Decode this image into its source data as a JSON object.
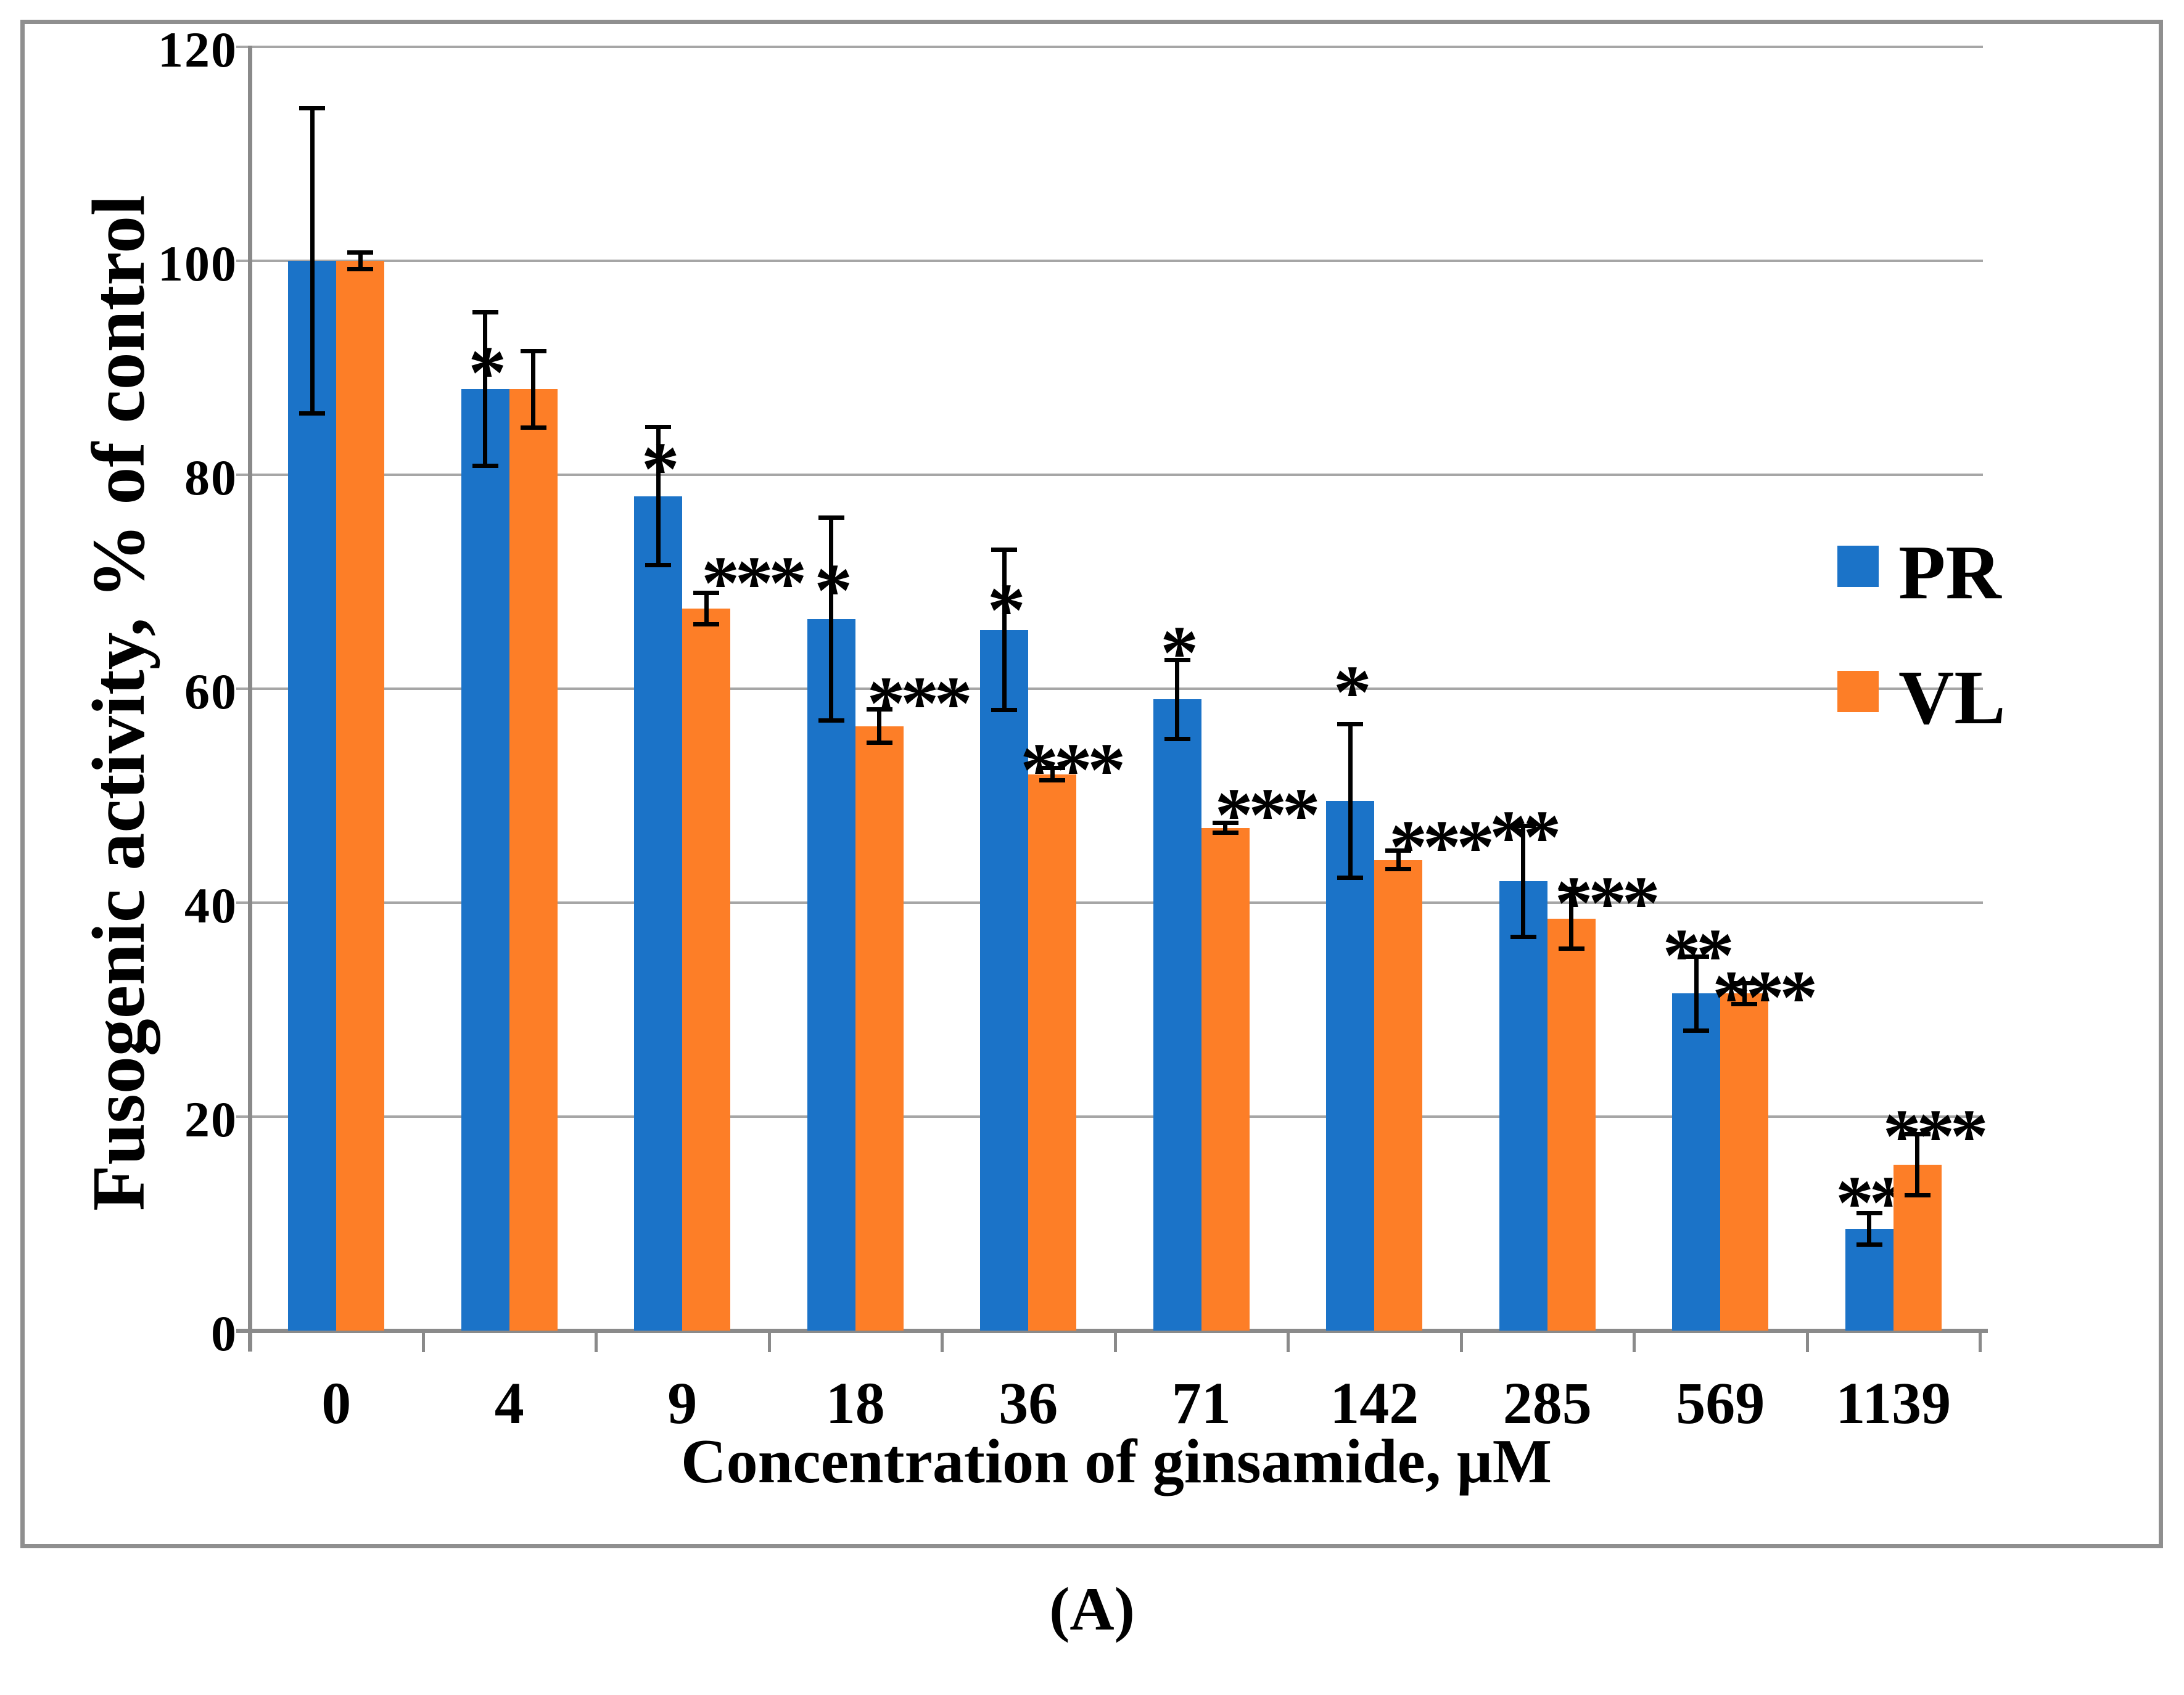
{
  "figure": {
    "caption": "(A)"
  },
  "chart_data": {
    "type": "bar",
    "title": "",
    "xlabel": "Concentration of ginsamide, μM",
    "ylabel": "Fusogenic activity, % of control",
    "categories": [
      "0",
      "4",
      "9",
      "18",
      "36",
      "71",
      "142",
      "285",
      "569",
      "1139"
    ],
    "y_ticks": [
      0,
      20,
      40,
      60,
      80,
      100,
      120
    ],
    "ylim": [
      0,
      120
    ],
    "grid": true,
    "legend_position": "right-inside",
    "gridline_color": "#a6a6a6",
    "error_bar_color": "#000000",
    "series": [
      {
        "name": "PR",
        "color": "#1b73c8",
        "values": [
          100,
          88,
          78,
          66.5,
          65.5,
          59,
          49.5,
          42,
          31.5,
          9.5
        ],
        "errors": [
          14.3,
          7.2,
          6.5,
          9.5,
          7.5,
          3.7,
          7.2,
          5.2,
          3.5,
          1.5
        ],
        "significance": [
          "",
          "*",
          "*",
          "*",
          "*",
          "*",
          "*",
          "**",
          "**",
          "**"
        ]
      },
      {
        "name": "VL",
        "color": "#fd7e27",
        "values": [
          100,
          88,
          67.5,
          56.5,
          52,
          47,
          44,
          38.5,
          31.5,
          15.5
        ],
        "errors": [
          0.8,
          3.6,
          1.5,
          1.6,
          0.6,
          0.5,
          0.9,
          2.8,
          1.0,
          2.9
        ],
        "significance": [
          "",
          "",
          "***",
          "***",
          "***",
          "***",
          "***",
          "***",
          "***",
          "***"
        ]
      }
    ]
  }
}
